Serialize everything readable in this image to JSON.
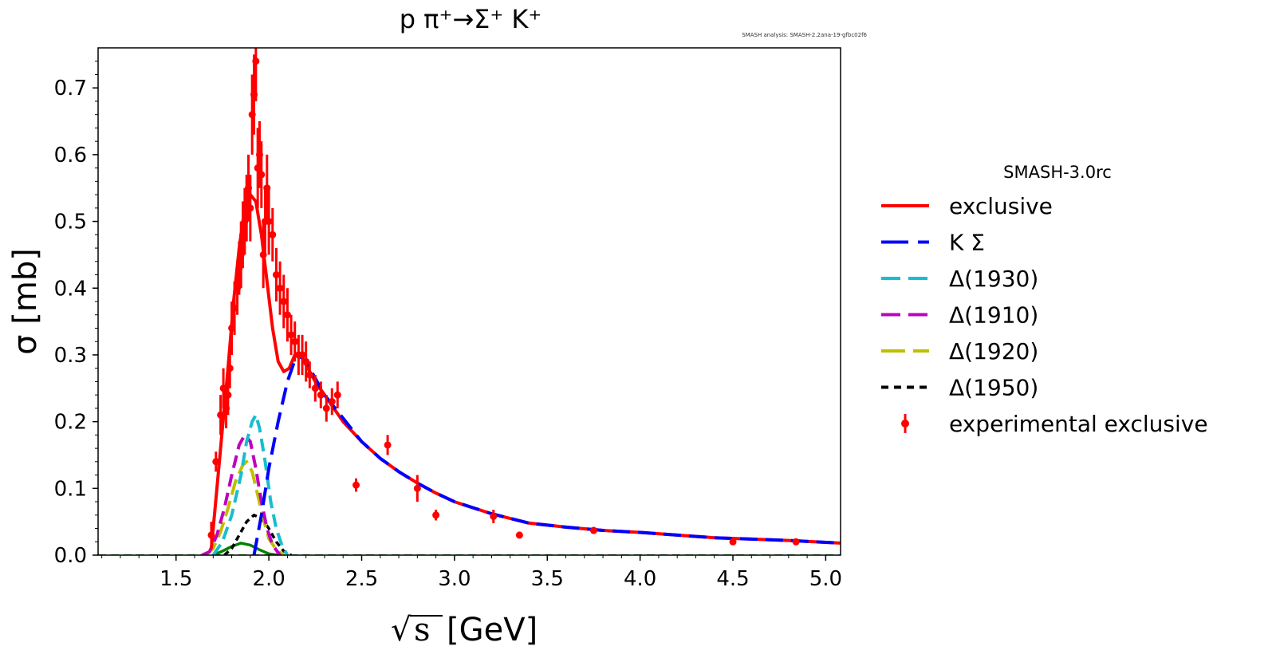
{
  "chart_data": {
    "type": "line",
    "title": "p π⁺→Σ⁺ K⁺",
    "version_note": "SMASH analysis: SMASH-2.2ana-19-gfbc02f6",
    "xlabel": "[GeV]",
    "xlabel_symbol": "s",
    "ylabel": "σ [mb]",
    "xlim": [
      1.08,
      5.08
    ],
    "ylim": [
      0.0,
      0.76
    ],
    "xticks": [
      1.5,
      2.0,
      2.5,
      3.0,
      3.5,
      4.0,
      4.5,
      5.0
    ],
    "xtick_labels": [
      "1.5",
      "2.0",
      "2.5",
      "3.0",
      "3.5",
      "4.0",
      "4.5",
      "5.0"
    ],
    "yticks": [
      0.0,
      0.1,
      0.2,
      0.3,
      0.4,
      0.5,
      0.6,
      0.7
    ],
    "ytick_labels": [
      "0.0",
      "0.1",
      "0.2",
      "0.3",
      "0.4",
      "0.5",
      "0.6",
      "0.7"
    ],
    "legend": {
      "title": "SMASH-3.0rc",
      "position": "right-outside",
      "entries": [
        "exclusive",
        "K Σ",
        "Δ(1930)",
        "Δ(1910)",
        "Δ(1920)",
        "Δ(1950)",
        "experimental exclusive"
      ]
    },
    "colors": {
      "exclusive": "#ff0000",
      "KSigma": "#0000ff",
      "D1930": "#17becf",
      "D1910": "#bf00bf",
      "D1920": "#bfbf00",
      "D1950": "#000000",
      "other": "#008000",
      "experimental": "#ff0000"
    },
    "series": [
      {
        "name": "exclusive",
        "x": [
          1.69,
          1.72,
          1.75,
          1.78,
          1.81,
          1.84,
          1.87,
          1.9,
          1.93,
          1.96,
          1.99,
          2.02,
          2.05,
          2.08,
          2.11,
          2.14,
          2.17,
          2.2,
          2.25,
          2.3,
          2.35,
          2.4,
          2.5,
          2.6,
          2.7,
          2.8,
          2.9,
          3.0,
          3.2,
          3.4,
          3.6,
          3.8,
          4.0,
          4.2,
          4.4,
          4.6,
          4.8,
          5.08
        ],
        "y": [
          0.01,
          0.1,
          0.19,
          0.28,
          0.38,
          0.46,
          0.52,
          0.54,
          0.53,
          0.48,
          0.41,
          0.34,
          0.29,
          0.275,
          0.28,
          0.3,
          0.3,
          0.285,
          0.26,
          0.24,
          0.22,
          0.2,
          0.17,
          0.145,
          0.125,
          0.108,
          0.093,
          0.08,
          0.062,
          0.048,
          0.042,
          0.037,
          0.034,
          0.03,
          0.026,
          0.024,
          0.022,
          0.018
        ]
      },
      {
        "name": "K Σ",
        "x": [
          1.92,
          1.96,
          2.0,
          2.05,
          2.1,
          2.15,
          2.18,
          2.22,
          2.3,
          2.4,
          2.5,
          2.6,
          2.7,
          2.8,
          2.9,
          3.0,
          3.2,
          3.4,
          3.6,
          3.8,
          4.0,
          4.2,
          4.4,
          4.6,
          4.8,
          5.08
        ],
        "y": [
          0.0,
          0.06,
          0.13,
          0.2,
          0.26,
          0.3,
          0.295,
          0.28,
          0.24,
          0.205,
          0.17,
          0.145,
          0.125,
          0.108,
          0.093,
          0.08,
          0.062,
          0.048,
          0.042,
          0.037,
          0.034,
          0.03,
          0.026,
          0.024,
          0.022,
          0.018
        ]
      },
      {
        "name": "Δ(1930)",
        "x": [
          1.7,
          1.75,
          1.8,
          1.85,
          1.88,
          1.91,
          1.93,
          1.95,
          1.98,
          2.01,
          2.04,
          2.07,
          2.1
        ],
        "y": [
          0.0,
          0.02,
          0.06,
          0.12,
          0.17,
          0.2,
          0.21,
          0.19,
          0.14,
          0.08,
          0.04,
          0.015,
          0.0
        ]
      },
      {
        "name": "Δ(1910)",
        "x": [
          1.64,
          1.68,
          1.72,
          1.76,
          1.8,
          1.84,
          1.87,
          1.9,
          1.93,
          1.96,
          1.99,
          2.02,
          2.06
        ],
        "y": [
          0.0,
          0.005,
          0.03,
          0.07,
          0.12,
          0.165,
          0.18,
          0.17,
          0.13,
          0.08,
          0.04,
          0.015,
          0.0
        ]
      },
      {
        "name": "Δ(1920)",
        "x": [
          1.66,
          1.7,
          1.74,
          1.78,
          1.82,
          1.86,
          1.88,
          1.91,
          1.94,
          1.97,
          2.0,
          2.04,
          2.08
        ],
        "y": [
          0.0,
          0.01,
          0.035,
          0.07,
          0.11,
          0.135,
          0.14,
          0.125,
          0.09,
          0.055,
          0.025,
          0.008,
          0.0
        ]
      },
      {
        "name": "Δ(1950)",
        "x": [
          1.76,
          1.8,
          1.84,
          1.88,
          1.92,
          1.96,
          2.0,
          2.04,
          2.08,
          2.12
        ],
        "y": [
          0.0,
          0.01,
          0.03,
          0.05,
          0.06,
          0.055,
          0.04,
          0.02,
          0.006,
          0.0
        ]
      },
      {
        "name": "other",
        "x": [
          1.7,
          1.75,
          1.8,
          1.85,
          1.9,
          1.95,
          2.0,
          2.05
        ],
        "y": [
          0.0,
          0.006,
          0.013,
          0.018,
          0.015,
          0.008,
          0.002,
          0.0
        ]
      }
    ],
    "experimental": {
      "name": "experimental exclusive",
      "x": [
        1.69,
        1.715,
        1.74,
        1.755,
        1.77,
        1.78,
        1.79,
        1.8,
        1.815,
        1.83,
        1.84,
        1.85,
        1.86,
        1.87,
        1.88,
        1.89,
        1.9,
        1.91,
        1.92,
        1.93,
        1.94,
        1.95,
        1.96,
        1.97,
        1.98,
        1.99,
        2.0,
        2.02,
        2.04,
        2.06,
        2.08,
        2.1,
        2.12,
        2.14,
        2.16,
        2.18,
        2.2,
        2.22,
        2.25,
        2.28,
        2.31,
        2.34,
        2.37,
        2.47,
        2.64,
        2.8,
        2.9,
        3.21,
        3.35,
        3.75,
        4.5,
        4.84
      ],
      "y": [
        0.03,
        0.14,
        0.21,
        0.25,
        0.22,
        0.24,
        0.28,
        0.34,
        0.37,
        0.4,
        0.43,
        0.45,
        0.48,
        0.5,
        0.52,
        0.55,
        0.52,
        0.66,
        0.69,
        0.74,
        0.58,
        0.6,
        0.57,
        0.45,
        0.5,
        0.55,
        0.5,
        0.48,
        0.42,
        0.4,
        0.38,
        0.36,
        0.33,
        0.32,
        0.3,
        0.3,
        0.29,
        0.27,
        0.25,
        0.24,
        0.22,
        0.23,
        0.24,
        0.105,
        0.165,
        0.1,
        0.06,
        0.058,
        0.03,
        0.037,
        0.02,
        0.02
      ],
      "err": [
        0.02,
        0.015,
        0.03,
        0.03,
        0.03,
        0.03,
        0.03,
        0.04,
        0.04,
        0.04,
        0.04,
        0.05,
        0.05,
        0.05,
        0.05,
        0.05,
        0.05,
        0.06,
        0.06,
        0.06,
        0.06,
        0.05,
        0.05,
        0.05,
        0.05,
        0.05,
        0.05,
        0.04,
        0.04,
        0.04,
        0.04,
        0.04,
        0.03,
        0.03,
        0.03,
        0.03,
        0.03,
        0.02,
        0.02,
        0.02,
        0.02,
        0.02,
        0.02,
        0.01,
        0.015,
        0.02,
        0.008,
        0.01,
        0.005,
        0.005,
        0.004,
        0.004
      ]
    }
  }
}
